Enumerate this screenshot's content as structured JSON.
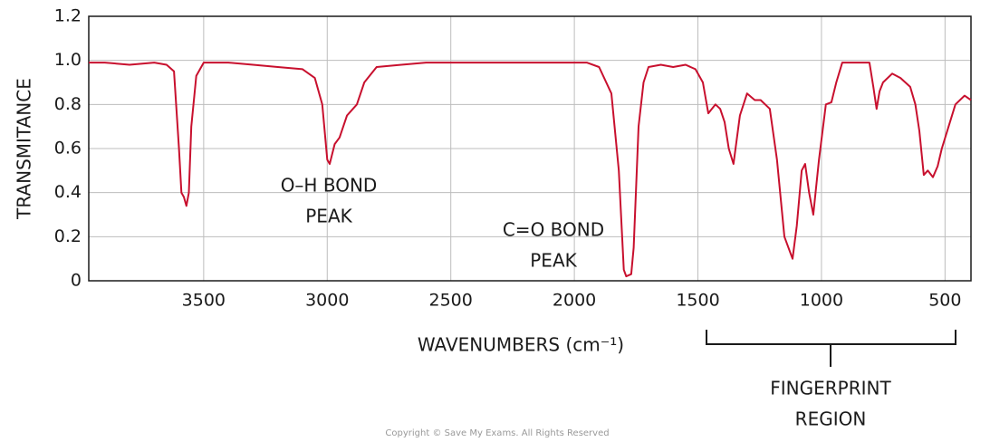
{
  "chart_data": {
    "type": "line",
    "y_label": "TRANSMITANCE",
    "x_label": "WAVENUMBERS (cm⁻¹)",
    "xlim": [
      3965,
      395
    ],
    "ylim": [
      0,
      1.2
    ],
    "xticks": [
      3500,
      3000,
      2500,
      2000,
      1500,
      1000,
      500
    ],
    "yticks": [
      0,
      0.2,
      0.4,
      0.6,
      0.8,
      {
        "value": 1,
        "label": "1.0"
      },
      1.2
    ],
    "grid": true,
    "color": "#c8102e",
    "x": [
      3965,
      3900,
      3800,
      3700,
      3650,
      3620,
      3600,
      3590,
      3580,
      3570,
      3560,
      3550,
      3530,
      3500,
      3400,
      3300,
      3200,
      3100,
      3050,
      3020,
      3000,
      2990,
      2970,
      2950,
      2920,
      2880,
      2850,
      2800,
      2700,
      2600,
      2400,
      2200,
      2000,
      1950,
      1900,
      1850,
      1820,
      1800,
      1790,
      1770,
      1760,
      1740,
      1720,
      1700,
      1650,
      1600,
      1550,
      1510,
      1480,
      1458,
      1429,
      1410,
      1392,
      1375,
      1356,
      1330,
      1301,
      1270,
      1246,
      1209,
      1180,
      1150,
      1117,
      1100,
      1080,
      1066,
      1050,
      1033,
      1010,
      982,
      960,
      940,
      916,
      860,
      806,
      790,
      777,
      765,
      751,
      714,
      680,
      641,
      620,
      604,
      586,
      570,
      549,
      530,
      513,
      480,
      458,
      421,
      395
    ],
    "values": [
      0.99,
      0.99,
      0.98,
      0.99,
      0.98,
      0.95,
      0.6,
      0.4,
      0.38,
      0.34,
      0.4,
      0.7,
      0.93,
      0.99,
      0.99,
      0.98,
      0.97,
      0.96,
      0.92,
      0.8,
      0.55,
      0.53,
      0.62,
      0.65,
      0.75,
      0.8,
      0.9,
      0.97,
      0.98,
      0.99,
      0.99,
      0.99,
      0.99,
      0.99,
      0.97,
      0.85,
      0.5,
      0.05,
      0.02,
      0.03,
      0.15,
      0.7,
      0.9,
      0.97,
      0.98,
      0.97,
      0.98,
      0.96,
      0.9,
      0.76,
      0.8,
      0.78,
      0.72,
      0.6,
      0.53,
      0.75,
      0.85,
      0.82,
      0.82,
      0.78,
      0.55,
      0.2,
      0.1,
      0.25,
      0.5,
      0.53,
      0.4,
      0.3,
      0.55,
      0.8,
      0.81,
      0.9,
      0.99,
      0.99,
      0.99,
      0.88,
      0.78,
      0.86,
      0.9,
      0.94,
      0.92,
      0.88,
      0.8,
      0.68,
      0.48,
      0.5,
      0.47,
      0.52,
      0.6,
      0.72,
      0.8,
      0.84,
      0.82
    ],
    "annotations": [
      [
        "O–H BOND",
        "PEAK"
      ],
      [
        "C=O BOND",
        "PEAK"
      ],
      [
        "FINGERPRINT",
        "REGION"
      ]
    ],
    "copyright": "Copyright © Save My Exams. All Rights Reserved"
  }
}
